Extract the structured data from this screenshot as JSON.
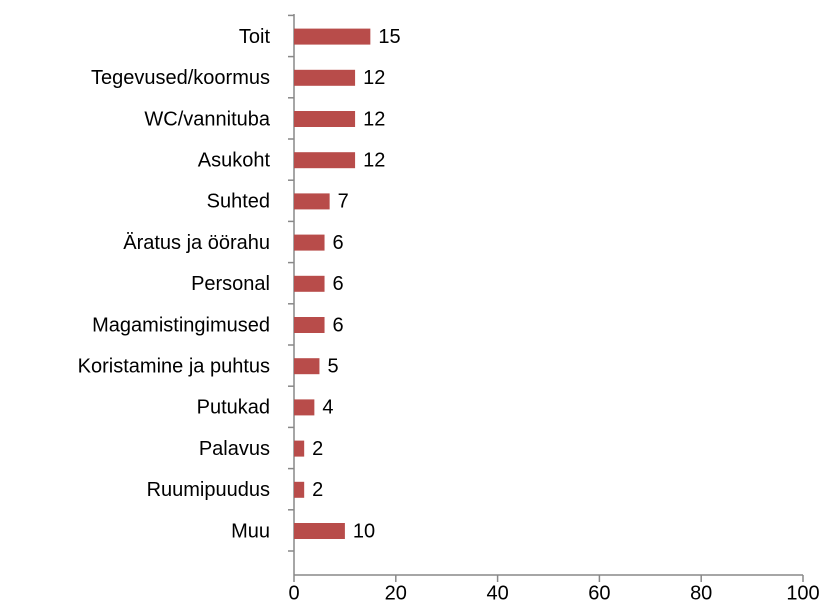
{
  "chart_data": {
    "type": "bar",
    "orientation": "horizontal",
    "categories": [
      "Toit",
      "Tegevused/koormus",
      "WC/vannituba",
      "Asukoht",
      "Suhted",
      "Äratus ja öörahu",
      "Personal",
      "Magamistingimused",
      "Koristamine ja puhtus",
      "Putukad",
      "Palavus",
      "Ruumipuudus",
      "Muu"
    ],
    "values": [
      15,
      12,
      12,
      12,
      7,
      6,
      6,
      6,
      5,
      4,
      2,
      2,
      10
    ],
    "color": "#b84c4a",
    "xlim": [
      0,
      100
    ],
    "xticks": [
      0,
      20,
      40,
      60,
      80,
      100
    ],
    "grid": false
  }
}
